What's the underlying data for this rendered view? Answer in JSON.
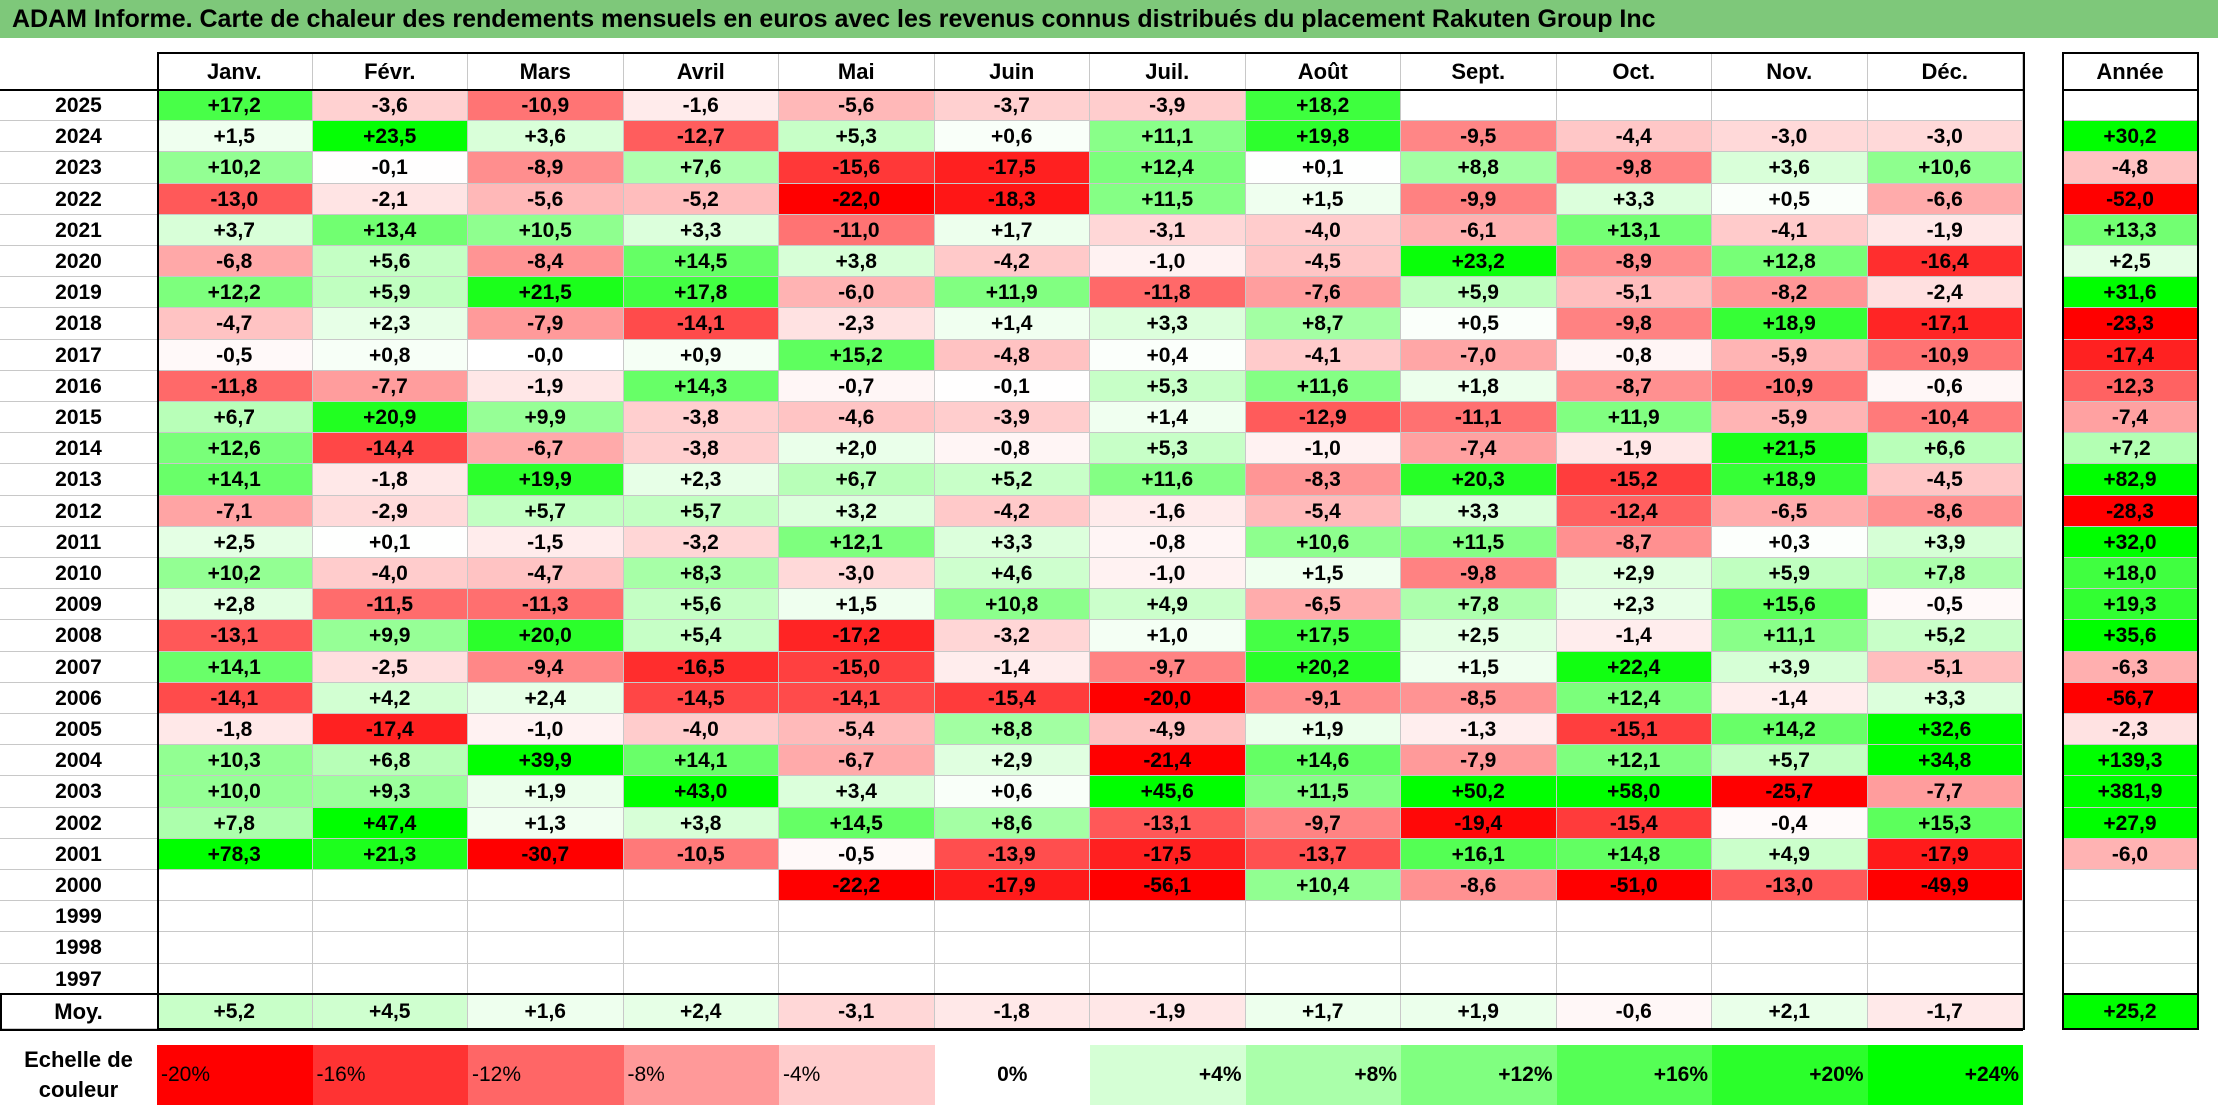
{
  "title": "ADAM Informe. Carte de chaleur des rendements mensuels en euros avec les revenus connus distribués du placement Rakuten Group Inc",
  "chart_data": {
    "type": "heatmap",
    "title": "ADAM Informe. Carte de chaleur des rendements mensuels en euros avec les revenus connus distribués du placement Rakuten Group Inc",
    "columns": [
      "Janv.",
      "Févr.",
      "Mars",
      "Avril",
      "Mai",
      "Juin",
      "Juil.",
      "Août",
      "Sept.",
      "Oct.",
      "Nov.",
      "Déc."
    ],
    "year_column": "Année",
    "rows": [
      {
        "year": "2025",
        "values": [
          "+17,2",
          "-3,6",
          "-10,9",
          "-1,6",
          "-5,6",
          "-3,7",
          "-3,9",
          "+18,2",
          "",
          "",
          "",
          ""
        ],
        "annual": ""
      },
      {
        "year": "2024",
        "values": [
          "+1,5",
          "+23,5",
          "+3,6",
          "-12,7",
          "+5,3",
          "+0,6",
          "+11,1",
          "+19,8",
          "-9,5",
          "-4,4",
          "-3,0",
          "-3,0"
        ],
        "annual": "+30,2"
      },
      {
        "year": "2023",
        "values": [
          "+10,2",
          "-0,1",
          "-8,9",
          "+7,6",
          "-15,6",
          "-17,5",
          "+12,4",
          "+0,1",
          "+8,8",
          "-9,8",
          "+3,6",
          "+10,6"
        ],
        "annual": "-4,8"
      },
      {
        "year": "2022",
        "values": [
          "-13,0",
          "-2,1",
          "-5,6",
          "-5,2",
          "-22,0",
          "-18,3",
          "+11,5",
          "+1,5",
          "-9,9",
          "+3,3",
          "+0,5",
          "-6,6"
        ],
        "annual": "-52,0"
      },
      {
        "year": "2021",
        "values": [
          "+3,7",
          "+13,4",
          "+10,5",
          "+3,3",
          "-11,0",
          "+1,7",
          "-3,1",
          "-4,0",
          "-6,1",
          "+13,1",
          "-4,1",
          "-1,9"
        ],
        "annual": "+13,3"
      },
      {
        "year": "2020",
        "values": [
          "-6,8",
          "+5,6",
          "-8,4",
          "+14,5",
          "+3,8",
          "-4,2",
          "-1,0",
          "-4,5",
          "+23,2",
          "-8,9",
          "+12,8",
          "-16,4"
        ],
        "annual": "+2,5"
      },
      {
        "year": "2019",
        "values": [
          "+12,2",
          "+5,9",
          "+21,5",
          "+17,8",
          "-6,0",
          "+11,9",
          "-11,8",
          "-7,6",
          "+5,9",
          "-5,1",
          "-8,2",
          "-2,4"
        ],
        "annual": "+31,6"
      },
      {
        "year": "2018",
        "values": [
          "-4,7",
          "+2,3",
          "-7,9",
          "-14,1",
          "-2,3",
          "+1,4",
          "+3,3",
          "+8,7",
          "+0,5",
          "-9,8",
          "+18,9",
          "-17,1"
        ],
        "annual": "-23,3"
      },
      {
        "year": "2017",
        "values": [
          "-0,5",
          "+0,8",
          "-0,0",
          "+0,9",
          "+15,2",
          "-4,8",
          "+0,4",
          "-4,1",
          "-7,0",
          "-0,8",
          "-5,9",
          "-10,9"
        ],
        "annual": "-17,4"
      },
      {
        "year": "2016",
        "values": [
          "-11,8",
          "-7,7",
          "-1,9",
          "+14,3",
          "-0,7",
          "-0,1",
          "+5,3",
          "+11,6",
          "+1,8",
          "-8,7",
          "-10,9",
          "-0,6"
        ],
        "annual": "-12,3"
      },
      {
        "year": "2015",
        "values": [
          "+6,7",
          "+20,9",
          "+9,9",
          "-3,8",
          "-4,6",
          "-3,9",
          "+1,4",
          "-12,9",
          "-11,1",
          "+11,9",
          "-5,9",
          "-10,4"
        ],
        "annual": "-7,4"
      },
      {
        "year": "2014",
        "values": [
          "+12,6",
          "-14,4",
          "-6,7",
          "-3,8",
          "+2,0",
          "-0,8",
          "+5,3",
          "-1,0",
          "-7,4",
          "-1,9",
          "+21,5",
          "+6,6"
        ],
        "annual": "+7,2"
      },
      {
        "year": "2013",
        "values": [
          "+14,1",
          "-1,8",
          "+19,9",
          "+2,3",
          "+6,7",
          "+5,2",
          "+11,6",
          "-8,3",
          "+20,3",
          "-15,2",
          "+18,9",
          "-4,5"
        ],
        "annual": "+82,9"
      },
      {
        "year": "2012",
        "values": [
          "-7,1",
          "-2,9",
          "+5,7",
          "+5,7",
          "+3,2",
          "-4,2",
          "-1,6",
          "-5,4",
          "+3,3",
          "-12,4",
          "-6,5",
          "-8,6"
        ],
        "annual": "-28,3"
      },
      {
        "year": "2011",
        "values": [
          "+2,5",
          "+0,1",
          "-1,5",
          "-3,2",
          "+12,1",
          "+3,3",
          "-0,8",
          "+10,6",
          "+11,5",
          "-8,7",
          "+0,3",
          "+3,9"
        ],
        "annual": "+32,0"
      },
      {
        "year": "2010",
        "values": [
          "+10,2",
          "-4,0",
          "-4,7",
          "+8,3",
          "-3,0",
          "+4,6",
          "-1,0",
          "+1,5",
          "-9,8",
          "+2,9",
          "+5,9",
          "+7,8"
        ],
        "annual": "+18,0"
      },
      {
        "year": "2009",
        "values": [
          "+2,8",
          "-11,5",
          "-11,3",
          "+5,6",
          "+1,5",
          "+10,8",
          "+4,9",
          "-6,5",
          "+7,8",
          "+2,3",
          "+15,6",
          "-0,5"
        ],
        "annual": "+19,3"
      },
      {
        "year": "2008",
        "values": [
          "-13,1",
          "+9,9",
          "+20,0",
          "+5,4",
          "-17,2",
          "-3,2",
          "+1,0",
          "+17,5",
          "+2,5",
          "-1,4",
          "+11,1",
          "+5,2"
        ],
        "annual": "+35,6"
      },
      {
        "year": "2007",
        "values": [
          "+14,1",
          "-2,5",
          "-9,4",
          "-16,5",
          "-15,0",
          "-1,4",
          "-9,7",
          "+20,2",
          "+1,5",
          "+22,4",
          "+3,9",
          "-5,1"
        ],
        "annual": "-6,3"
      },
      {
        "year": "2006",
        "values": [
          "-14,1",
          "+4,2",
          "+2,4",
          "-14,5",
          "-14,1",
          "-15,4",
          "-20,0",
          "-9,1",
          "-8,5",
          "+12,4",
          "-1,4",
          "+3,3"
        ],
        "annual": "-56,7"
      },
      {
        "year": "2005",
        "values": [
          "-1,8",
          "-17,4",
          "-1,0",
          "-4,0",
          "-5,4",
          "+8,8",
          "-4,9",
          "+1,9",
          "-1,3",
          "-15,1",
          "+14,2",
          "+32,6"
        ],
        "annual": "-2,3"
      },
      {
        "year": "2004",
        "values": [
          "+10,3",
          "+6,8",
          "+39,9",
          "+14,1",
          "-6,7",
          "+2,9",
          "-21,4",
          "+14,6",
          "-7,9",
          "+12,1",
          "+5,7",
          "+34,8"
        ],
        "annual": "+139,3"
      },
      {
        "year": "2003",
        "values": [
          "+10,0",
          "+9,3",
          "+1,9",
          "+43,0",
          "+3,4",
          "+0,6",
          "+45,6",
          "+11,5",
          "+50,2",
          "+58,0",
          "-25,7",
          "-7,7"
        ],
        "annual": "+381,9"
      },
      {
        "year": "2002",
        "values": [
          "+7,8",
          "+47,4",
          "+1,3",
          "+3,8",
          "+14,5",
          "+8,6",
          "-13,1",
          "-9,7",
          "-19,4",
          "-15,4",
          "-0,4",
          "+15,3"
        ],
        "annual": "+27,9"
      },
      {
        "year": "2001",
        "values": [
          "+78,3",
          "+21,3",
          "-30,7",
          "-10,5",
          "-0,5",
          "-13,9",
          "-17,5",
          "-13,7",
          "+16,1",
          "+14,8",
          "+4,9",
          "-17,9"
        ],
        "annual": "-6,0"
      },
      {
        "year": "2000",
        "values": [
          "",
          "",
          "",
          "",
          "-22,2",
          "-17,9",
          "-56,1",
          "+10,4",
          "-8,6",
          "-51,0",
          "-13,0",
          "-49,9"
        ],
        "annual": ""
      },
      {
        "year": "1999",
        "values": [
          "",
          "",
          "",
          "",
          "",
          "",
          "",
          "",
          "",
          "",
          "",
          ""
        ],
        "annual": ""
      },
      {
        "year": "1998",
        "values": [
          "",
          "",
          "",
          "",
          "",
          "",
          "",
          "",
          "",
          "",
          "",
          ""
        ],
        "annual": ""
      },
      {
        "year": "1997",
        "values": [
          "",
          "",
          "",
          "",
          "",
          "",
          "",
          "",
          "",
          "",
          "",
          ""
        ],
        "annual": ""
      }
    ],
    "average": {
      "label": "Moy.",
      "values": [
        "+5,2",
        "+4,5",
        "+1,6",
        "+2,4",
        "-3,1",
        "-1,8",
        "-1,9",
        "+1,7",
        "+1,9",
        "-0,6",
        "+2,1",
        "-1,7"
      ],
      "annual": "+25,2"
    },
    "scale": {
      "label": "Echelle de couleur",
      "steps": [
        "-20%",
        "-16%",
        "-12%",
        "-8%",
        "-4%",
        "0%",
        "+4%",
        "+8%",
        "+12%",
        "+16%",
        "+20%",
        "+24%"
      ]
    },
    "colors": {
      "negative_max": "#ff0000",
      "neutral": "#ffffff",
      "positive_max": "#00ff00",
      "title_bar": "#7ec87a"
    }
  }
}
